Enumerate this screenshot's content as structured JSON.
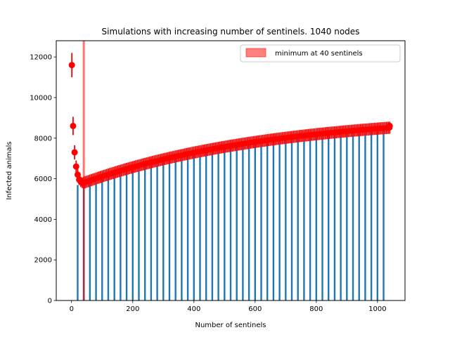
{
  "chart_data": {
    "type": "bar",
    "title": "Simulations with increasing number of sentinels. 1040 nodes",
    "xlabel": "Number of sentinels",
    "ylabel": "Infected animals",
    "xlim": [
      -50,
      1090
    ],
    "ylim": [
      0,
      12800
    ],
    "x_ticks": [
      0,
      200,
      400,
      600,
      800,
      1000
    ],
    "y_ticks": [
      0,
      2000,
      4000,
      6000,
      8000,
      10000,
      12000
    ],
    "grid": false,
    "legend": {
      "placement": "top-right",
      "entries": [
        "minimum at 40 sentinels"
      ]
    },
    "minimum_marker": {
      "x": 40,
      "label": "minimum at 40 sentinels",
      "color": "#ff0000"
    },
    "bar_color": "#1f77b4",
    "errorbar_color": "#ff0000",
    "bars": {
      "x_start": 20,
      "x_end": 1020,
      "step": 20,
      "curve": {
        "base": 5800,
        "asymptote": 9200,
        "rate": 0.0016
      }
    },
    "series": {
      "x_start": 40,
      "x_end": 1040,
      "step": 5,
      "curve": {
        "base": 5800,
        "asymptote": 9200,
        "rate": 0.0016
      },
      "yerr": 300
    },
    "early_points": [
      {
        "x": 1,
        "y": 11600,
        "yerr": 600
      },
      {
        "x": 5,
        "y": 8600,
        "yerr": 450
      },
      {
        "x": 10,
        "y": 7300,
        "yerr": 350
      },
      {
        "x": 15,
        "y": 6600,
        "yerr": 300
      },
      {
        "x": 20,
        "y": 6200,
        "yerr": 280
      },
      {
        "x": 25,
        "y": 5950,
        "yerr": 260
      },
      {
        "x": 30,
        "y": 5850,
        "yerr": 260
      },
      {
        "x": 35,
        "y": 5800,
        "yerr": 260
      }
    ],
    "last_point": {
      "x": 1040,
      "y": 8600
    }
  }
}
